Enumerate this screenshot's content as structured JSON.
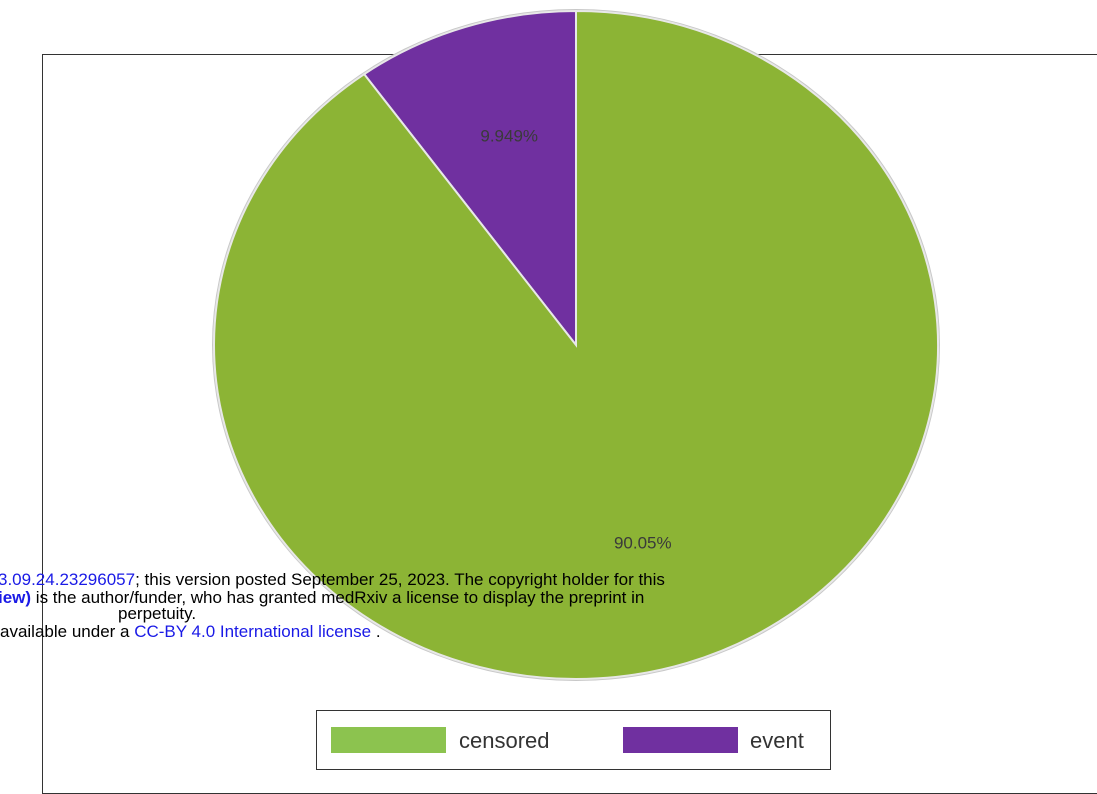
{
  "chart_data": {
    "type": "pie",
    "slices": [
      {
        "name": "event",
        "value": 9.949,
        "label": "9.949%",
        "color": "#7030a0"
      },
      {
        "name": "censored",
        "value": 90.05,
        "label": "90.05%",
        "color": "#8cb435"
      }
    ],
    "legend": {
      "placement": "bottom",
      "entries": [
        {
          "label": "censored",
          "color": "#8cc34f"
        },
        {
          "label": "event",
          "color": "#7030a0"
        }
      ]
    }
  },
  "watermark": {
    "line1_doi": "3.09.24.23296057",
    "line1_text": "; this version posted September 25, 2023. The copyright holder for this",
    "line2_bold": "iew)",
    "line2_text": " is the author/funder, who has granted medRxiv a license to display the preprint in",
    "line3_text": "perpetuity.",
    "line4_prefix": "available under a ",
    "line4_link": "CC-BY 4.0 International license",
    "line4_suffix": " ."
  }
}
